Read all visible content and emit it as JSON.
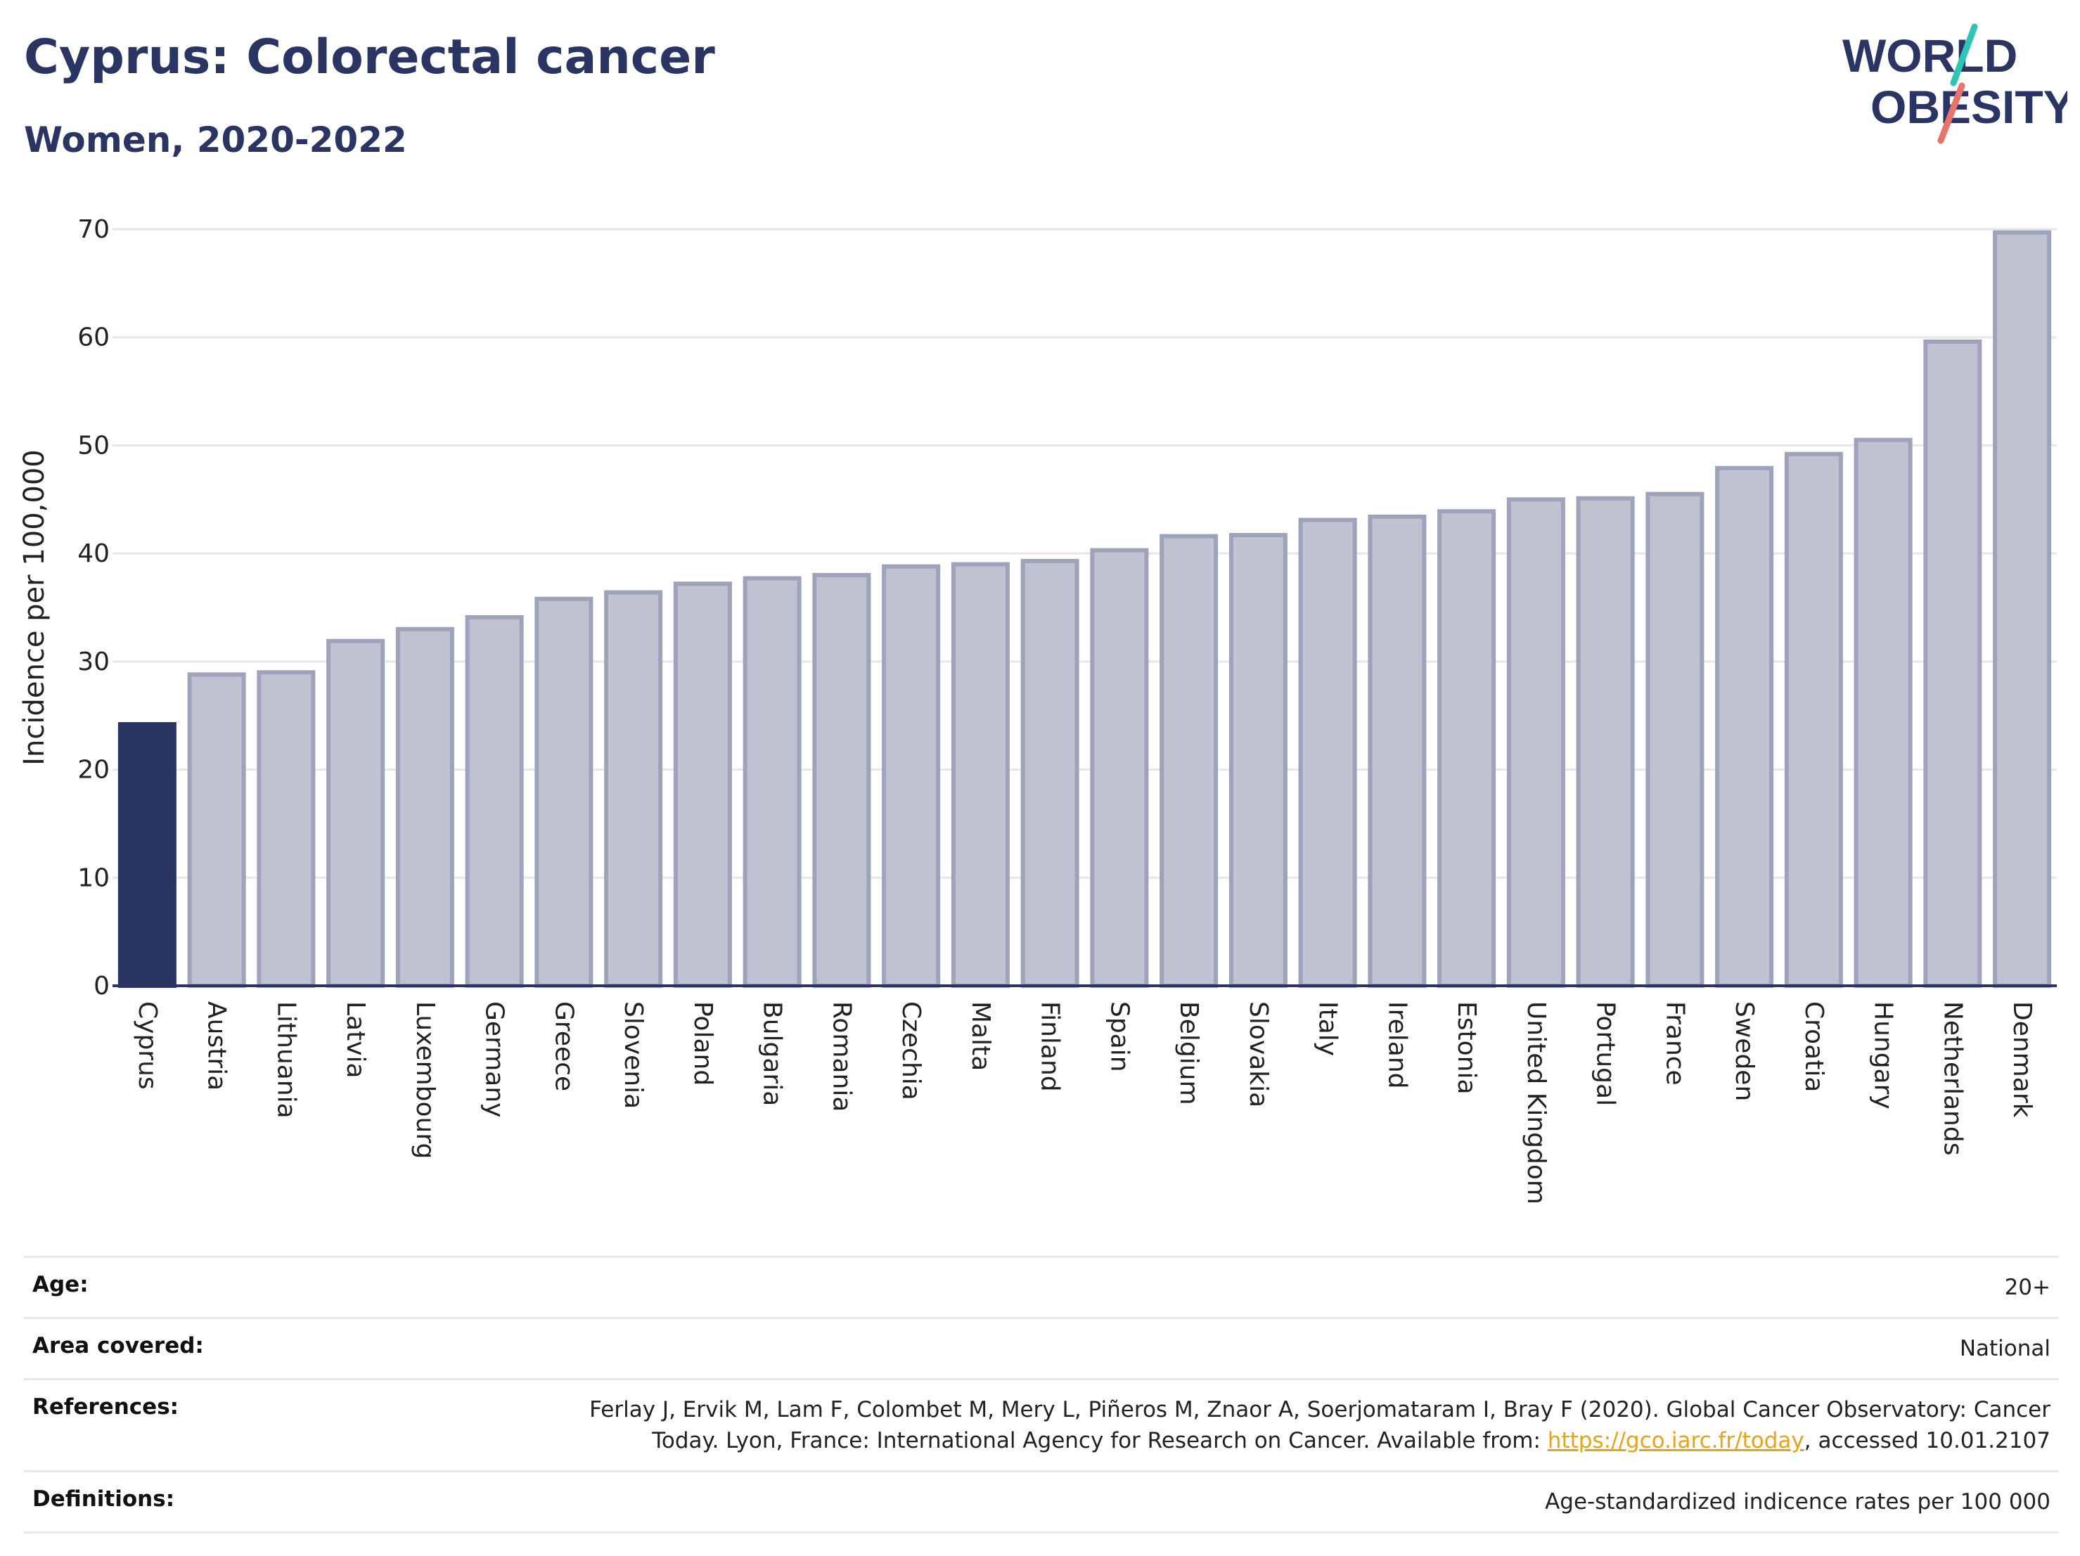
{
  "header": {
    "title": "Cyprus: Colorectal cancer",
    "subtitle": "Women, 2020-2022"
  },
  "logo": {
    "line1": "WORLD",
    "line2": "OBESITY",
    "colors": {
      "text": "#2b3563",
      "stroke_teal": "#2ec4b6",
      "stroke_coral": "#e8736b"
    }
  },
  "chart_data": {
    "type": "bar",
    "ylabel": "Incidence per 100,000",
    "xlabel": "",
    "ylim": [
      0,
      70
    ],
    "yticks": [
      0,
      10,
      20,
      30,
      40,
      50,
      60,
      70
    ],
    "grid": true,
    "highlight": "Cyprus",
    "colors": {
      "highlight": "#2b3563",
      "bar_fill": "#bfc2d1",
      "bar_stroke": "#9ea3bb",
      "grid": "#e6e6ec",
      "axis": "#2b3563"
    },
    "categories": [
      "Cyprus",
      "Austria",
      "Lithuania",
      "Latvia",
      "Luxembourg",
      "Germany",
      "Greece",
      "Slovenia",
      "Poland",
      "Bulgaria",
      "Romania",
      "Czechia",
      "Malta",
      "Finland",
      "Spain",
      "Belgium",
      "Slovakia",
      "Italy",
      "Ireland",
      "Estonia",
      "United Kingdom",
      "Portugal",
      "France",
      "Sweden",
      "Croatia",
      "Hungary",
      "Netherlands",
      "Denmark"
    ],
    "values": [
      24.2,
      28.8,
      29.0,
      31.9,
      33.0,
      34.1,
      35.8,
      36.4,
      37.2,
      37.7,
      38.0,
      38.8,
      39.0,
      39.3,
      40.3,
      41.6,
      41.7,
      43.1,
      43.4,
      43.9,
      45.0,
      45.1,
      45.5,
      47.9,
      49.2,
      50.5,
      59.6,
      69.7
    ]
  },
  "meta": {
    "age_label": "Age:",
    "age_value": "20+",
    "area_label": "Area covered:",
    "area_value": "National",
    "references_label": "References:",
    "references_text_1": "Ferlay J, Ervik M, Lam F, Colombet M, Mery L, Piñeros M, Znaor A, Soerjomataram I, Bray F (2020). Global Cancer Observatory: Cancer Today. Lyon, France: International Agency for Research on Cancer. Available from: ",
    "references_link": "https://gco.iarc.fr/today",
    "references_text_2": ", accessed 10.01.2107",
    "definitions_label": "Definitions:",
    "definitions_value": "Age-standardized indicence rates per 100 000"
  }
}
